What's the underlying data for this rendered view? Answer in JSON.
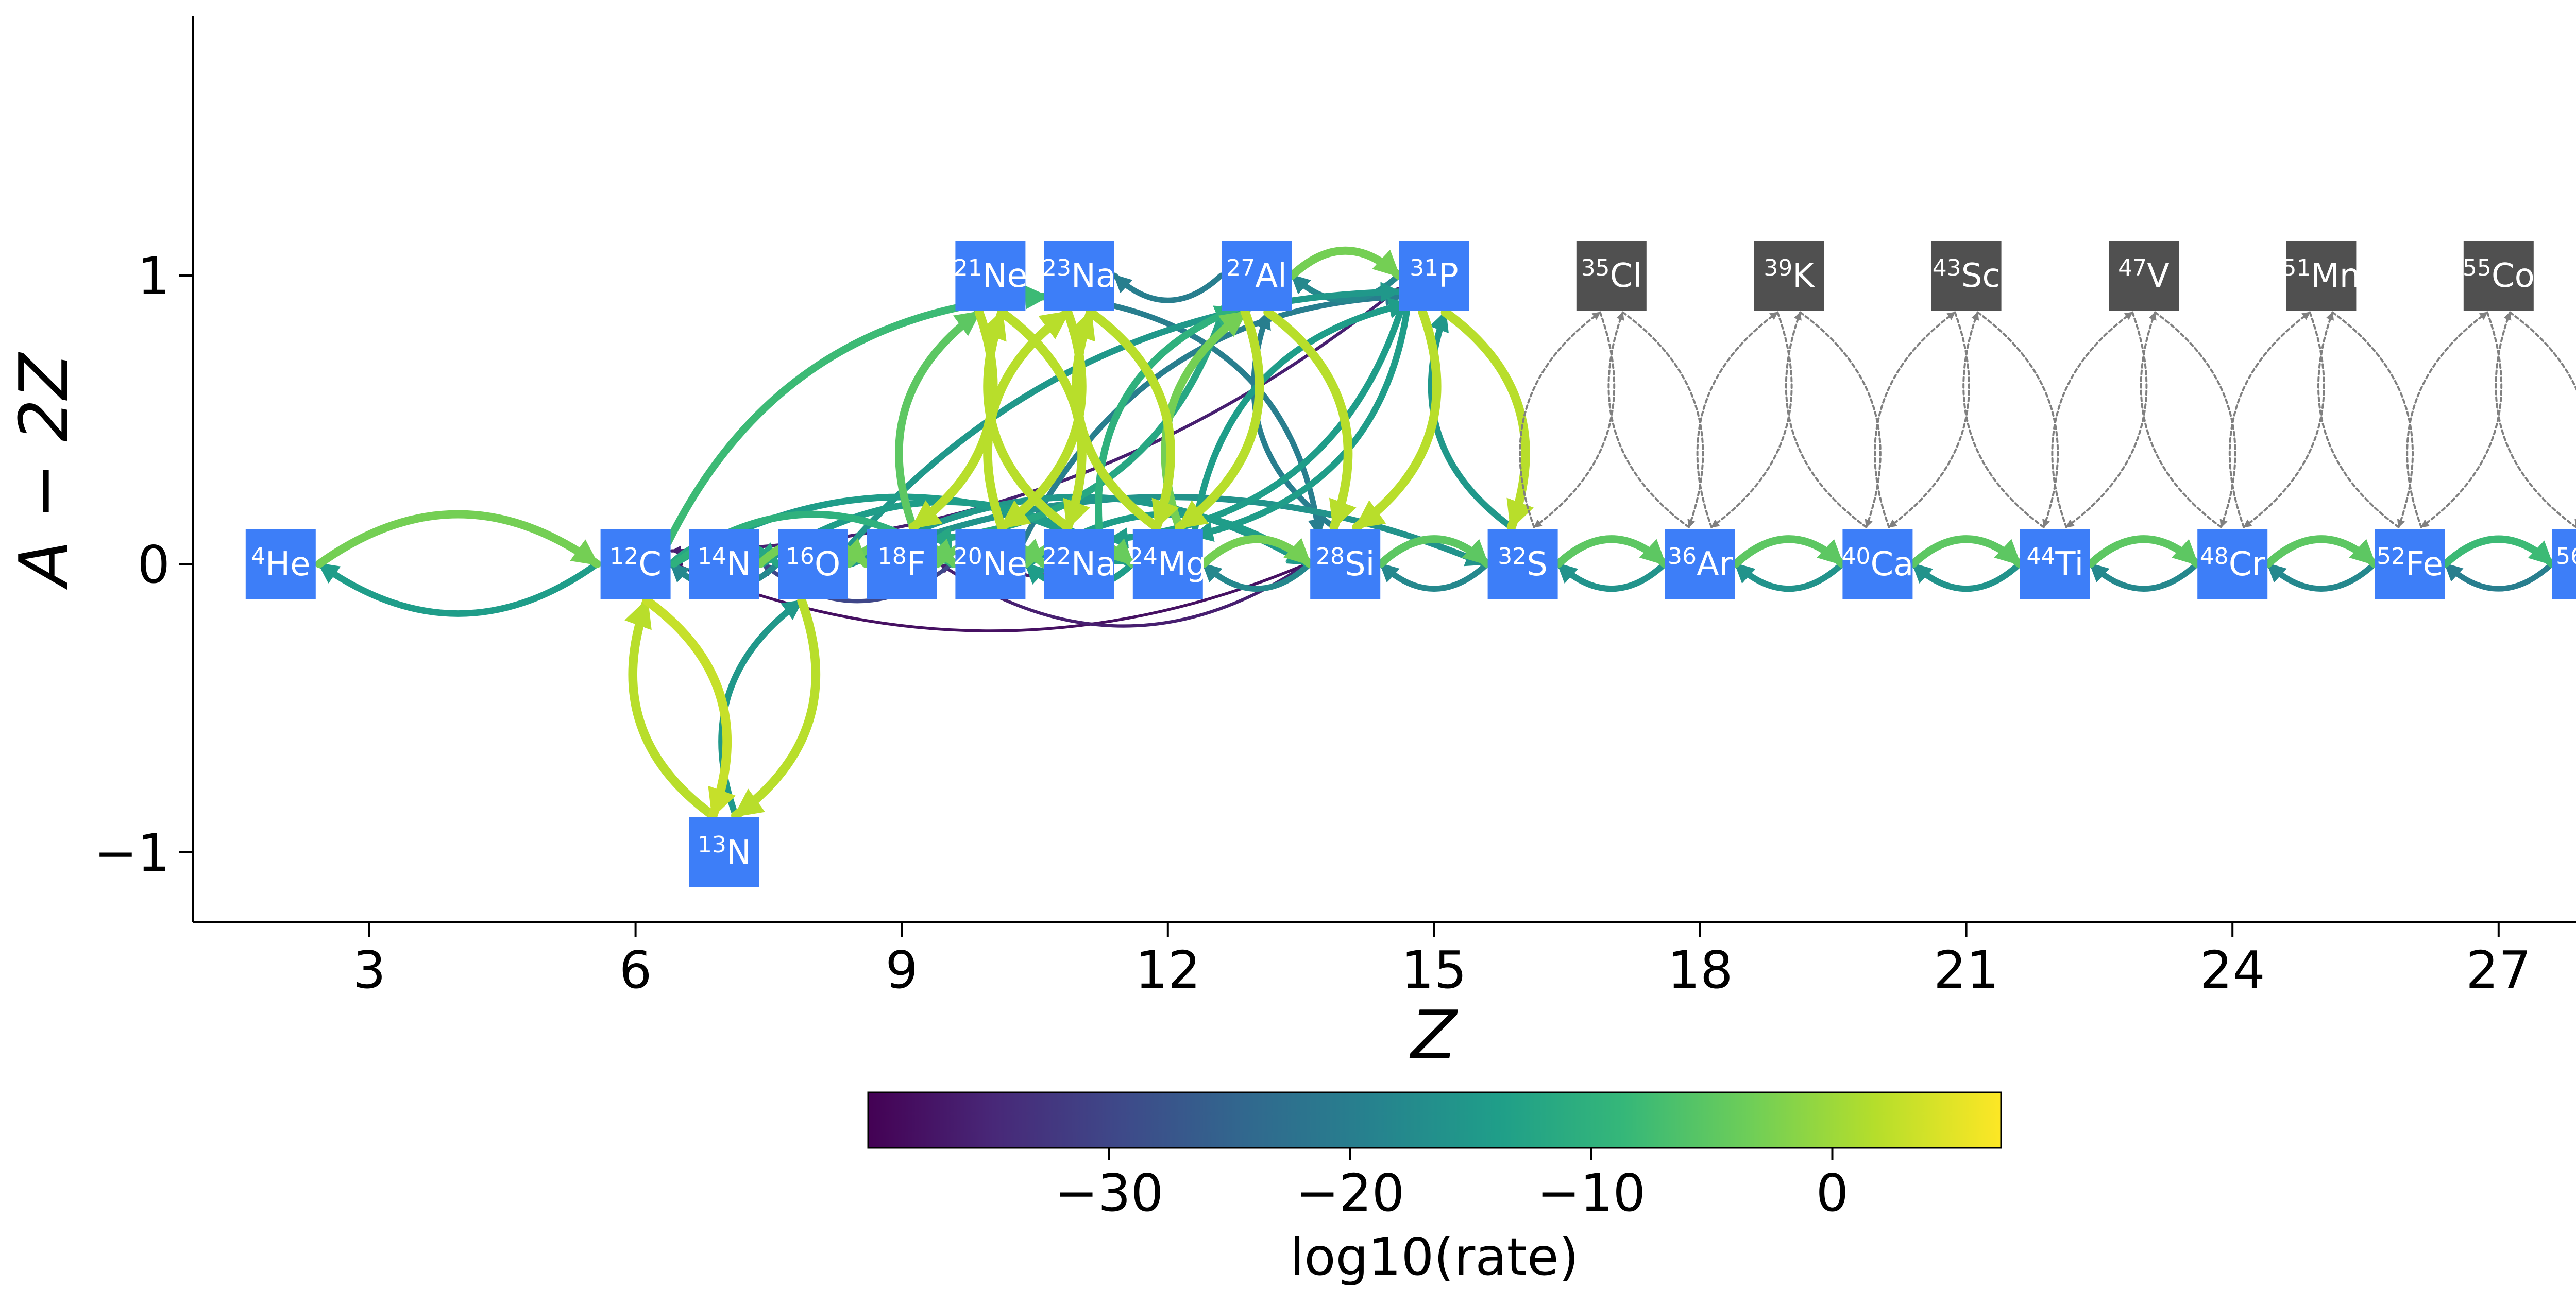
{
  "chart_data": {
    "type": "network",
    "xlabel": "Z",
    "ylabel": "A − 2Z",
    "xlim": [
      1.2,
      29.2
    ],
    "ylim": [
      -1.25,
      1.9
    ],
    "xticks": [
      3,
      6,
      9,
      12,
      15,
      18,
      21,
      24,
      27
    ],
    "yticks": [
      -1,
      0,
      1
    ],
    "ytick_labels": [
      "−1",
      "0",
      "1"
    ],
    "colorbar": {
      "label": "log10(rate)",
      "range": [
        -40,
        7
      ],
      "ticks": [
        -30,
        -20,
        -10,
        0
      ],
      "tick_labels": [
        "−30",
        "−20",
        "−10",
        "0"
      ],
      "colormap": [
        "#440154",
        "#482878",
        "#3e4989",
        "#31688e",
        "#26828e",
        "#1f9e89",
        "#35b779",
        "#6ece58",
        "#b5de2b",
        "#fde725"
      ]
    },
    "node_colors": {
      "active": "#3d7ef8",
      "inactive": "#505050"
    },
    "nodes": [
      {
        "id": "he4",
        "mass": "4",
        "symbol": "He",
        "z": 2,
        "n_minus_z": 0,
        "active": true
      },
      {
        "id": "c12",
        "mass": "12",
        "symbol": "C",
        "z": 6,
        "n_minus_z": 0,
        "active": true
      },
      {
        "id": "n13",
        "mass": "13",
        "symbol": "N",
        "z": 7,
        "n_minus_z": -1,
        "active": true
      },
      {
        "id": "n14",
        "mass": "14",
        "symbol": "N",
        "z": 7,
        "n_minus_z": 0,
        "active": true
      },
      {
        "id": "o16",
        "mass": "16",
        "symbol": "O",
        "z": 8,
        "n_minus_z": 0,
        "active": true
      },
      {
        "id": "f18",
        "mass": "18",
        "symbol": "F",
        "z": 9,
        "n_minus_z": 0,
        "active": true
      },
      {
        "id": "ne20",
        "mass": "20",
        "symbol": "Ne",
        "z": 10,
        "n_minus_z": 0,
        "active": true
      },
      {
        "id": "ne21",
        "mass": "21",
        "symbol": "Ne",
        "z": 10,
        "n_minus_z": 1,
        "active": true
      },
      {
        "id": "na22",
        "mass": "22",
        "symbol": "Na",
        "z": 11,
        "n_minus_z": 0,
        "active": true
      },
      {
        "id": "na23",
        "mass": "23",
        "symbol": "Na",
        "z": 11,
        "n_minus_z": 1,
        "active": true
      },
      {
        "id": "mg24",
        "mass": "24",
        "symbol": "Mg",
        "z": 12,
        "n_minus_z": 0,
        "active": true
      },
      {
        "id": "al27",
        "mass": "27",
        "symbol": "Al",
        "z": 13,
        "n_minus_z": 1,
        "active": true
      },
      {
        "id": "si28",
        "mass": "28",
        "symbol": "Si",
        "z": 14,
        "n_minus_z": 0,
        "active": true
      },
      {
        "id": "p31",
        "mass": "31",
        "symbol": "P",
        "z": 15,
        "n_minus_z": 1,
        "active": true
      },
      {
        "id": "s32",
        "mass": "32",
        "symbol": "S",
        "z": 16,
        "n_minus_z": 0,
        "active": true
      },
      {
        "id": "cl35",
        "mass": "35",
        "symbol": "Cl",
        "z": 17,
        "n_minus_z": 1,
        "active": false
      },
      {
        "id": "ar36",
        "mass": "36",
        "symbol": "Ar",
        "z": 18,
        "n_minus_z": 0,
        "active": true
      },
      {
        "id": "k39",
        "mass": "39",
        "symbol": "K",
        "z": 19,
        "n_minus_z": 1,
        "active": false
      },
      {
        "id": "ca40",
        "mass": "40",
        "symbol": "Ca",
        "z": 20,
        "n_minus_z": 0,
        "active": true
      },
      {
        "id": "sc43",
        "mass": "43",
        "symbol": "Sc",
        "z": 21,
        "n_minus_z": 1,
        "active": false
      },
      {
        "id": "ti44",
        "mass": "44",
        "symbol": "Ti",
        "z": 22,
        "n_minus_z": 0,
        "active": true
      },
      {
        "id": "v47",
        "mass": "47",
        "symbol": "V",
        "z": 23,
        "n_minus_z": 1,
        "active": false
      },
      {
        "id": "cr48",
        "mass": "48",
        "symbol": "Cr",
        "z": 24,
        "n_minus_z": 0,
        "active": true
      },
      {
        "id": "mn51",
        "mass": "51",
        "symbol": "Mn",
        "z": 25,
        "n_minus_z": 1,
        "active": false
      },
      {
        "id": "fe52",
        "mass": "52",
        "symbol": "Fe",
        "z": 26,
        "n_minus_z": 0,
        "active": true
      },
      {
        "id": "co55",
        "mass": "55",
        "symbol": "Co",
        "z": 27,
        "n_minus_z": 1,
        "active": false
      },
      {
        "id": "ni56",
        "mass": "56",
        "symbol": "Ni",
        "z": 28,
        "n_minus_z": 0,
        "active": true
      }
    ],
    "edges": [
      {
        "from": "he4",
        "to": "c12",
        "log_rate": -3
      },
      {
        "from": "c12",
        "to": "he4",
        "log_rate": -14
      },
      {
        "from": "c12",
        "to": "o16",
        "log_rate": -12
      },
      {
        "from": "o16",
        "to": "c12",
        "log_rate": -18
      },
      {
        "from": "c12",
        "to": "ne20",
        "log_rate": -10
      },
      {
        "from": "c12",
        "to": "na23",
        "log_rate": -8
      },
      {
        "from": "c12",
        "to": "mg24",
        "log_rate": -14
      },
      {
        "from": "c12",
        "to": "n13",
        "log_rate": 3
      },
      {
        "from": "n13",
        "to": "c12",
        "log_rate": 2
      },
      {
        "from": "n13",
        "to": "o16",
        "log_rate": -15
      },
      {
        "from": "o16",
        "to": "n13",
        "log_rate": 2
      },
      {
        "from": "n14",
        "to": "f18",
        "log_rate": -3
      },
      {
        "from": "n14",
        "to": "mg24",
        "log_rate": -14
      },
      {
        "from": "o16",
        "to": "ne20",
        "log_rate": -4
      },
      {
        "from": "o16",
        "to": "si28",
        "log_rate": -15
      },
      {
        "from": "o16",
        "to": "s32",
        "log_rate": -16
      },
      {
        "from": "o16",
        "to": "p31",
        "log_rate": -15
      },
      {
        "from": "f18",
        "to": "ne21",
        "log_rate": -5
      },
      {
        "from": "f18",
        "to": "na22",
        "log_rate": -4
      },
      {
        "from": "ne21",
        "to": "f18",
        "log_rate": 2
      },
      {
        "from": "ne20",
        "to": "mg24",
        "log_rate": -4
      },
      {
        "from": "ne20",
        "to": "n14",
        "log_rate": -30
      },
      {
        "from": "ne20",
        "to": "na23",
        "log_rate": 2
      },
      {
        "from": "ne20",
        "to": "si28",
        "log_rate": -14
      },
      {
        "from": "ne20",
        "to": "p31",
        "log_rate": -20
      },
      {
        "from": "ne21",
        "to": "na22",
        "log_rate": 2
      },
      {
        "from": "na22",
        "to": "ne21",
        "log_rate": 2
      },
      {
        "from": "na22",
        "to": "ne20",
        "log_rate": -36
      },
      {
        "from": "na22",
        "to": "al27",
        "log_rate": -10
      },
      {
        "from": "na23",
        "to": "ne20",
        "log_rate": 2
      },
      {
        "from": "na23",
        "to": "mg24",
        "log_rate": 2
      },
      {
        "from": "na23",
        "to": "si28",
        "log_rate": -20
      },
      {
        "from": "mg24",
        "to": "na23",
        "log_rate": 2
      },
      {
        "from": "mg24",
        "to": "si28",
        "log_rate": -3
      },
      {
        "from": "mg24",
        "to": "al27",
        "log_rate": -3
      },
      {
        "from": "mg24",
        "to": "ne20",
        "log_rate": -14
      },
      {
        "from": "mg24",
        "to": "p31",
        "log_rate": -14
      },
      {
        "from": "al27",
        "to": "na23",
        "log_rate": -20
      },
      {
        "from": "al27",
        "to": "si28",
        "log_rate": 2
      },
      {
        "from": "al27",
        "to": "mg24",
        "log_rate": 2
      },
      {
        "from": "al27",
        "to": "f18",
        "log_rate": -12
      },
      {
        "from": "al27",
        "to": "p31",
        "log_rate": -3
      },
      {
        "from": "si28",
        "to": "mg24",
        "log_rate": -18
      },
      {
        "from": "si28",
        "to": "al27",
        "log_rate": -20
      },
      {
        "from": "si28",
        "to": "s32",
        "log_rate": -5
      },
      {
        "from": "si28",
        "to": "c12",
        "log_rate": -38
      },
      {
        "from": "si28",
        "to": "f18",
        "log_rate": -36
      },
      {
        "from": "p31",
        "to": "al27",
        "log_rate": -18
      },
      {
        "from": "p31",
        "to": "s32",
        "log_rate": 2
      },
      {
        "from": "p31",
        "to": "si28",
        "log_rate": 2
      },
      {
        "from": "p31",
        "to": "c12",
        "log_rate": -36
      },
      {
        "from": "p31",
        "to": "mg24",
        "log_rate": -14
      },
      {
        "from": "p31",
        "to": "na22",
        "log_rate": -14
      },
      {
        "from": "s32",
        "to": "si28",
        "log_rate": -18
      },
      {
        "from": "s32",
        "to": "p31",
        "log_rate": -15
      },
      {
        "from": "s32",
        "to": "ar36",
        "log_rate": -5
      },
      {
        "from": "ar36",
        "to": "s32",
        "log_rate": -16
      },
      {
        "from": "ar36",
        "to": "ca40",
        "log_rate": -5
      },
      {
        "from": "ca40",
        "to": "ar36",
        "log_rate": -16
      },
      {
        "from": "ca40",
        "to": "ti44",
        "log_rate": -5
      },
      {
        "from": "ti44",
        "to": "ca40",
        "log_rate": -16
      },
      {
        "from": "ti44",
        "to": "cr48",
        "log_rate": -5
      },
      {
        "from": "cr48",
        "to": "ti44",
        "log_rate": -18
      },
      {
        "from": "cr48",
        "to": "fe52",
        "log_rate": -5
      },
      {
        "from": "fe52",
        "to": "cr48",
        "log_rate": -18
      },
      {
        "from": "fe52",
        "to": "ni56",
        "log_rate": -8
      },
      {
        "from": "ni56",
        "to": "fe52",
        "log_rate": -20
      }
    ],
    "inactive_edges": [
      {
        "from": "s32",
        "to": "cl35"
      },
      {
        "from": "cl35",
        "to": "s32"
      },
      {
        "from": "cl35",
        "to": "ar36"
      },
      {
        "from": "ar36",
        "to": "cl35"
      },
      {
        "from": "ar36",
        "to": "k39"
      },
      {
        "from": "k39",
        "to": "ar36"
      },
      {
        "from": "k39",
        "to": "ca40"
      },
      {
        "from": "ca40",
        "to": "k39"
      },
      {
        "from": "ca40",
        "to": "sc43"
      },
      {
        "from": "sc43",
        "to": "ca40"
      },
      {
        "from": "sc43",
        "to": "ti44"
      },
      {
        "from": "ti44",
        "to": "sc43"
      },
      {
        "from": "ti44",
        "to": "v47"
      },
      {
        "from": "v47",
        "to": "ti44"
      },
      {
        "from": "v47",
        "to": "cr48"
      },
      {
        "from": "cr48",
        "to": "v47"
      },
      {
        "from": "cr48",
        "to": "mn51"
      },
      {
        "from": "mn51",
        "to": "cr48"
      },
      {
        "from": "mn51",
        "to": "fe52"
      },
      {
        "from": "fe52",
        "to": "mn51"
      },
      {
        "from": "fe52",
        "to": "co55"
      },
      {
        "from": "co55",
        "to": "fe52"
      },
      {
        "from": "co55",
        "to": "ni56"
      },
      {
        "from": "ni56",
        "to": "co55"
      }
    ]
  }
}
